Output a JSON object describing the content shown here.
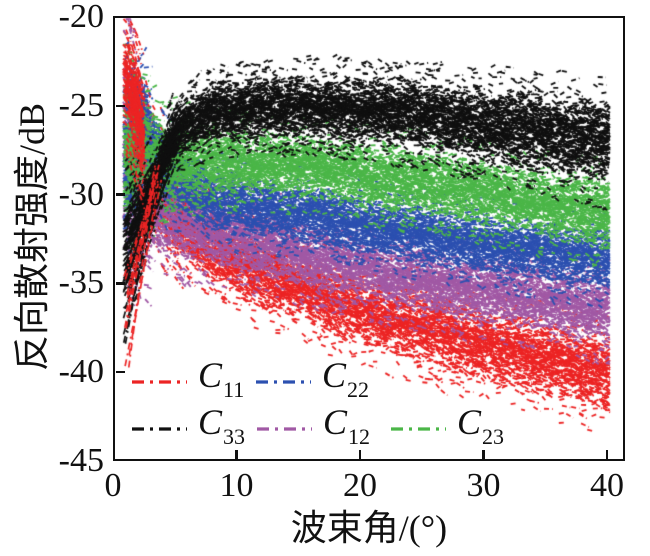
{
  "chart_data": {
    "type": "scatter",
    "title": "",
    "xlabel": "波束角/(°)",
    "ylabel": "反向散射强度/dB",
    "xlim": [
      0,
      41.5
    ],
    "ylim": [
      -45,
      -20
    ],
    "xticks": [
      0,
      10,
      20,
      30,
      40
    ],
    "xtick_labels": [
      "0",
      "10",
      "20",
      "30",
      "40"
    ],
    "yticks": [
      -20,
      -25,
      -30,
      -35,
      -40,
      -45
    ],
    "ytick_labels": [
      "-20",
      "-25",
      "-30",
      "-35",
      "-40",
      "-45"
    ],
    "grid": false,
    "legend_position": "lower-left-inside",
    "legend_rows": [
      [
        "C11",
        "C22"
      ],
      [
        "C33",
        "C12",
        "C23"
      ]
    ],
    "x_data_range": [
      0.8,
      40
    ],
    "series": [
      {
        "id": "C11",
        "legend_base": "C",
        "legend_sub": "11",
        "color": "#ec2424",
        "line_style": "dash-dot",
        "band_x_center_halfwidth": [
          [
            0.8,
            -23.5,
            2.3
          ],
          [
            1.6,
            -24.8,
            2.8
          ],
          [
            3,
            -28.2,
            3.2
          ],
          [
            5,
            -31.0,
            2.2
          ],
          [
            8,
            -32.9,
            2.0
          ],
          [
            12,
            -34.4,
            2.0
          ],
          [
            20,
            -36.4,
            2.0
          ],
          [
            30,
            -38.4,
            2.0
          ],
          [
            40,
            -40.0,
            2.2
          ]
        ],
        "fan": {
          "x0": 1.1,
          "x1": 3.6,
          "y1": -29.0,
          "y0_min": -39.8,
          "y0_max": -34.0,
          "count": 12
        }
      },
      {
        "id": "C12",
        "legend_base": "C",
        "legend_sub": "12",
        "color": "#a159a5",
        "line_style": "dash-dot",
        "band_x_center_halfwidth": [
          [
            0.8,
            -27.0,
            5.7
          ],
          [
            2,
            -29.8,
            4.0
          ],
          [
            4,
            -31.0,
            2.4
          ],
          [
            8,
            -32.0,
            1.9
          ],
          [
            15,
            -33.3,
            1.8
          ],
          [
            22,
            -34.4,
            1.8
          ],
          [
            30,
            -35.4,
            1.8
          ],
          [
            40,
            -36.4,
            1.9
          ]
        ]
      },
      {
        "id": "C22",
        "legend_base": "C",
        "legend_sub": "22",
        "color": "#2c50b0",
        "line_style": "dash-dot",
        "band_x_center_halfwidth": [
          [
            0.8,
            -28.0,
            4.2
          ],
          [
            2.5,
            -26.3,
            2.2
          ],
          [
            4,
            -28.6,
            2.0
          ],
          [
            8,
            -30.3,
            1.7
          ],
          [
            15,
            -31.0,
            1.6
          ],
          [
            22,
            -31.9,
            1.6
          ],
          [
            30,
            -32.8,
            1.6
          ],
          [
            40,
            -33.6,
            1.7
          ]
        ]
      },
      {
        "id": "C23",
        "legend_base": "C",
        "legend_sub": "23",
        "color": "#4bb648",
        "line_style": "dash-dot",
        "band_x_center_halfwidth": [
          [
            0.8,
            -27.5,
            3.8
          ],
          [
            2,
            -27.8,
            3.0
          ],
          [
            4,
            -28.0,
            2.2
          ],
          [
            8,
            -28.1,
            1.8
          ],
          [
            15,
            -28.4,
            1.7
          ],
          [
            22,
            -29.0,
            1.8
          ],
          [
            30,
            -29.9,
            1.8
          ],
          [
            40,
            -31.1,
            1.9
          ]
        ]
      },
      {
        "id": "C33",
        "legend_base": "C",
        "legend_sub": "33",
        "color": "#101010",
        "line_style": "dash-dot",
        "band_x_center_halfwidth": [
          [
            0.8,
            -33.0,
            3.0
          ],
          [
            2,
            -31.5,
            2.5
          ],
          [
            3.5,
            -29.3,
            1.5
          ],
          [
            5,
            -26.5,
            1.5
          ],
          [
            8,
            -25.3,
            1.6
          ],
          [
            15,
            -25.0,
            1.7
          ],
          [
            22,
            -25.3,
            1.8
          ],
          [
            30,
            -26.0,
            2.0
          ],
          [
            40,
            -27.0,
            2.4
          ]
        ],
        "fan": {
          "x0": 1.0,
          "x1": 3.6,
          "y1": -29.4,
          "y0_min": -38.5,
          "y0_max": -33.0,
          "count": 12
        }
      }
    ]
  }
}
